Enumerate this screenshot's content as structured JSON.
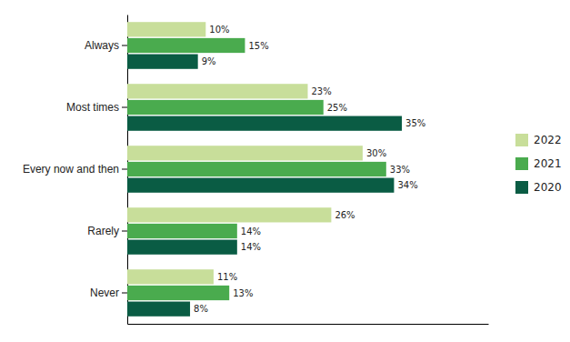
{
  "chart_data": {
    "type": "bar",
    "orientation": "horizontal",
    "categories": [
      "Always",
      "Most times",
      "Every now and then",
      "Rarely",
      "Never"
    ],
    "series": [
      {
        "name": "2022",
        "color": "#c8de9a",
        "values": [
          10,
          23,
          30,
          26,
          11
        ],
        "value_labels": [
          "10%",
          "23%",
          "30%",
          "26%",
          "11%"
        ]
      },
      {
        "name": "2021",
        "color": "#4aab4e",
        "values": [
          15,
          25,
          33,
          14,
          13
        ],
        "value_labels": [
          "15%",
          "25%",
          "33%",
          "14%",
          "13%"
        ]
      },
      {
        "name": "2020",
        "color": "#0a5c44",
        "values": [
          9,
          35,
          34,
          14,
          8
        ],
        "value_labels": [
          "9%",
          "35%",
          "34%",
          "14%",
          "8%"
        ]
      }
    ],
    "xlim": [
      0,
      46
    ],
    "grid": false,
    "legend": "right",
    "data_labels": true,
    "tick_labels": "y"
  }
}
